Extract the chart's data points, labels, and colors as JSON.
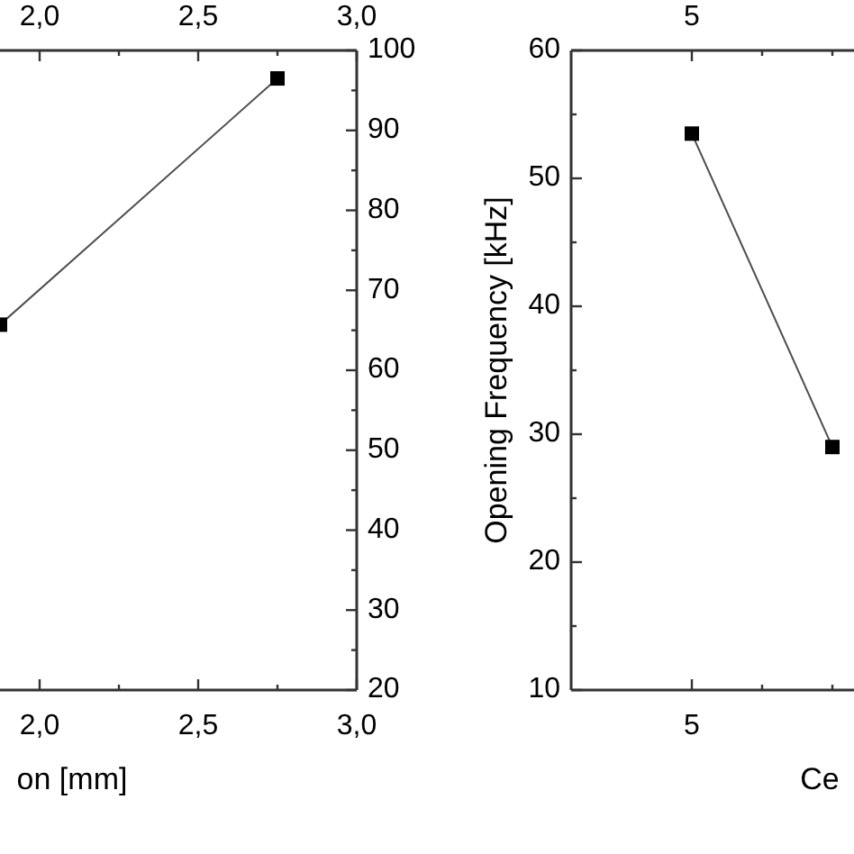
{
  "chart_data": [
    {
      "type": "line",
      "xlabel": "on [mm]",
      "xlim": [
        1.875,
        3.0
      ],
      "xticks": [
        {
          "value": 2,
          "label": "2,0"
        },
        {
          "value": 2.25,
          "label": null
        },
        {
          "value": 2.5,
          "label": "2,5"
        },
        {
          "value": 2.75,
          "label": null
        },
        {
          "value": 3,
          "label": "3,0"
        }
      ],
      "x2lim": [
        1.875,
        3.0
      ],
      "x2ticks": [
        {
          "value": 2,
          "label": "2,0"
        },
        {
          "value": 2.25,
          "label": null
        },
        {
          "value": 2.5,
          "label": "2,5"
        },
        {
          "value": 2.75,
          "label": null
        },
        {
          "value": 3,
          "label": "3,0"
        }
      ],
      "y2lim": [
        20,
        100
      ],
      "y2ticks": [
        20,
        {
          "value": 25,
          "label": null
        },
        30,
        {
          "value": 35,
          "label": null
        },
        40,
        {
          "value": 45,
          "label": null
        },
        50,
        {
          "value": 55,
          "label": null
        },
        60,
        {
          "value": 65,
          "label": null
        },
        70,
        {
          "value": 75,
          "label": null
        },
        80,
        {
          "value": 85,
          "label": null
        },
        90,
        {
          "value": 95,
          "label": null
        },
        100
      ],
      "marker": "square",
      "line_style": "solid",
      "series": [
        {
          "axis": "y2",
          "color": "#000000",
          "x": [
            1.875,
            2.75
          ],
          "values": [
            65.7,
            96.5
          ]
        }
      ]
    },
    {
      "type": "line",
      "xlabel": "Ce",
      "ylabel": "Opening Frequency [kHz]",
      "categories": [
        "5",
        null
      ],
      "ylim": [
        10,
        60
      ],
      "yticks": [
        10,
        {
          "value": 15,
          "label": null
        },
        20,
        {
          "value": 25,
          "label": null
        },
        30,
        {
          "value": 35,
          "label": null
        },
        40,
        {
          "value": 45,
          "label": null
        },
        50,
        {
          "value": 55,
          "label": null
        },
        60
      ],
      "marker": "square",
      "line_style": "solid",
      "series": [
        {
          "color": "#000000",
          "values": [
            53.5,
            29.0
          ]
        }
      ]
    }
  ]
}
